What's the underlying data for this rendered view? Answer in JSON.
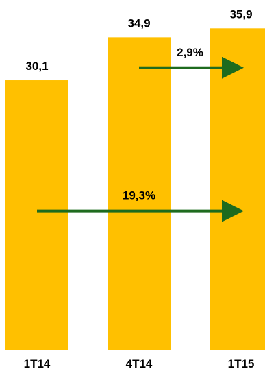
{
  "chart_data": {
    "type": "bar",
    "categories": [
      "1T14",
      "4T14",
      "1T15"
    ],
    "values": [
      30.1,
      34.9,
      35.9
    ],
    "data_labels": [
      "30,1",
      "34,9",
      "35,9"
    ],
    "bar_color": "#FFC000",
    "ylim": [
      0,
      36
    ],
    "annotations": [
      {
        "text": "2,9%",
        "from": "4T14",
        "to": "1T15",
        "level": 31.5,
        "color": "#1E6B1E"
      },
      {
        "text": "19,3%",
        "from": "1T14",
        "to": "1T15",
        "level": 15.5,
        "color": "#1E6B1E"
      }
    ],
    "grid": false,
    "legend": "none"
  }
}
